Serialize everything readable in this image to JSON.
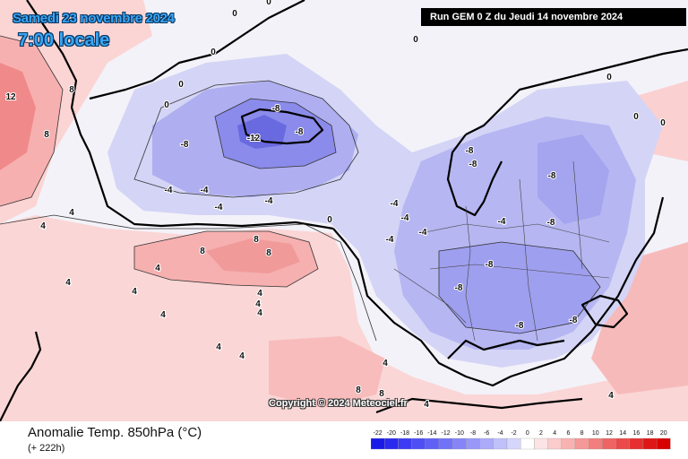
{
  "header": {
    "date_line": "Samedi 23 novembre 2024",
    "time_line": "7:00 locale",
    "run_info": "Run GEM 0 Z du Jeudi 14 novembre 2024"
  },
  "copyright": "Copyright © 2024 Meteociel.fr",
  "footer": {
    "parameter": "Anomalie Temp. 850hPa (°C)",
    "lead_time": "(+ 222h)"
  },
  "legend": {
    "levels": [
      "-22",
      "-20",
      "-18",
      "-16",
      "-14",
      "-12",
      "-10",
      "-8",
      "-6",
      "-4",
      "-2",
      "0",
      "2",
      "4",
      "6",
      "8",
      "10",
      "12",
      "14",
      "16",
      "18",
      "20"
    ],
    "colors": [
      "#1a1ae8",
      "#2a2aef",
      "#3c3cf2",
      "#4e4ef4",
      "#6060f5",
      "#7272f6",
      "#8585f7",
      "#9898f8",
      "#ababfa",
      "#c0c0fb",
      "#d6d6fc",
      "#ffffff",
      "#fde4e4",
      "#fbcccc",
      "#f8b2b2",
      "#f59898",
      "#f27e7e",
      "#ee6464",
      "#ea4a4a",
      "#e63030",
      "#e01616",
      "#d80000"
    ]
  },
  "map_labels": [
    {
      "text": "12"
    },
    {
      "text": "8"
    },
    {
      "text": "8"
    },
    {
      "text": "4"
    },
    {
      "text": "4"
    },
    {
      "text": "0"
    },
    {
      "text": "0"
    },
    {
      "text": "0"
    },
    {
      "text": "0"
    },
    {
      "text": "0"
    },
    {
      "text": "0"
    },
    {
      "text": "-4"
    },
    {
      "text": "-4"
    },
    {
      "text": "-4"
    },
    {
      "text": "-4"
    },
    {
      "text": "-4"
    },
    {
      "text": "-8"
    },
    {
      "text": "-8"
    },
    {
      "text": "-8"
    },
    {
      "text": "-12"
    },
    {
      "text": "-8"
    },
    {
      "text": "-8"
    },
    {
      "text": "-8"
    },
    {
      "text": "-8"
    },
    {
      "text": "-8"
    },
    {
      "text": "-8"
    },
    {
      "text": "-8"
    },
    {
      "text": "-8"
    },
    {
      "text": "-4"
    },
    {
      "text": "-4"
    },
    {
      "text": "-4"
    },
    {
      "text": "-4"
    },
    {
      "text": "0"
    },
    {
      "text": "0"
    },
    {
      "text": "0"
    },
    {
      "text": "0"
    },
    {
      "text": "8"
    },
    {
      "text": "8"
    },
    {
      "text": "8"
    },
    {
      "text": "4"
    },
    {
      "text": "4"
    },
    {
      "text": "4"
    },
    {
      "text": "4"
    },
    {
      "text": "4"
    },
    {
      "text": "4"
    },
    {
      "text": "4"
    },
    {
      "text": "4"
    },
    {
      "text": "4"
    },
    {
      "text": "4"
    },
    {
      "text": "8"
    },
    {
      "text": "8"
    },
    {
      "text": "4"
    },
    {
      "text": "4"
    }
  ]
}
